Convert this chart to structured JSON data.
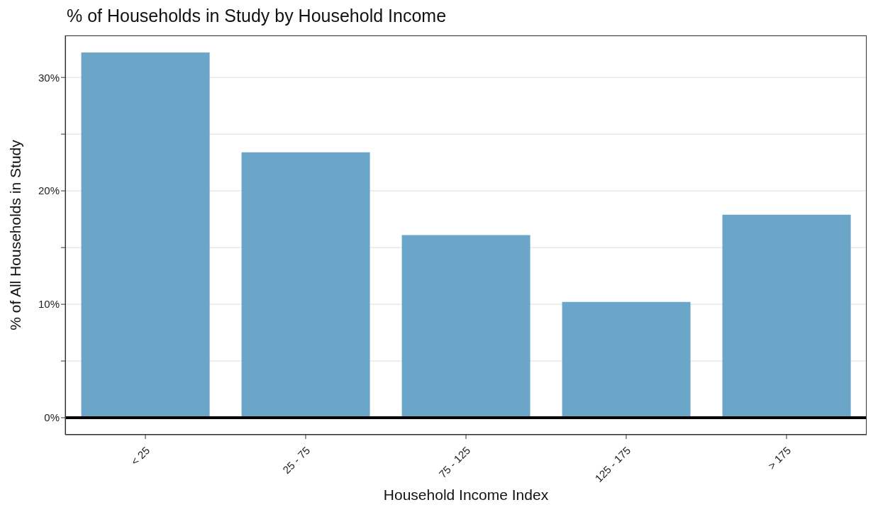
{
  "chart_data": {
    "type": "bar",
    "title": "% of Households in Study by Household Income",
    "xlabel": "Household Income Index",
    "ylabel": "% of All Households in Study",
    "categories": [
      "< 25",
      "25 - 75",
      "75 - 125",
      "125 - 175",
      "> 175"
    ],
    "values": [
      32.2,
      23.4,
      16.1,
      10.2,
      17.9
    ],
    "color": "#6ba5c7",
    "ylim": [
      -1.5,
      33.7
    ],
    "yticks": [
      {
        "value": 0,
        "label": "0%"
      },
      {
        "value": 5,
        "label": null
      },
      {
        "value": 10,
        "label": "10%"
      },
      {
        "value": 15,
        "label": null
      },
      {
        "value": 20,
        "label": "20%"
      },
      {
        "value": 25,
        "label": null
      },
      {
        "value": 30,
        "label": "30%"
      }
    ],
    "grid": "y",
    "legend": false,
    "ref_lines": [
      {
        "axis": "y",
        "value": 0,
        "label": null,
        "color": "#000000"
      }
    ]
  }
}
